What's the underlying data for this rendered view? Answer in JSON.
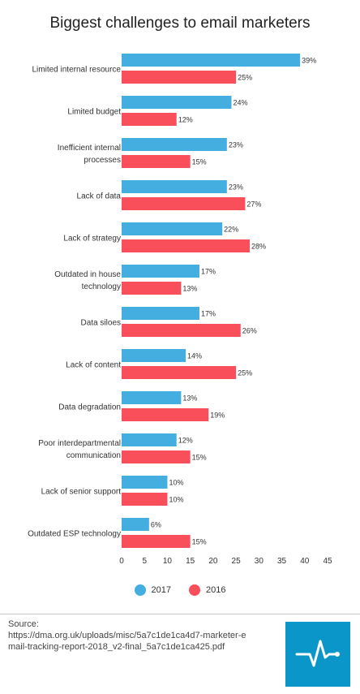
{
  "title": "Biggest challenges to email marketers",
  "colors": {
    "s2017": "#45aee0",
    "s2016": "#f94f5a",
    "logo_bg": "#0a96c8"
  },
  "chart_data": {
    "type": "bar",
    "orientation": "horizontal",
    "title": "Biggest challenges to email marketers",
    "categories": [
      "Limited internal resource",
      "Limited budget",
      "Inefficient internal processes",
      "Lack of data",
      "Lack of strategy",
      "Outdated in house technology",
      "Data siloes",
      "Lack of content",
      "Data degradation",
      "Poor interdepartmental communication",
      "Lack of senior support",
      "Outdated ESP technology"
    ],
    "category_lines": [
      [
        "Limited internal resource"
      ],
      [
        "Limited budget"
      ],
      [
        "Inefficient internal",
        "processes"
      ],
      [
        "Lack of data"
      ],
      [
        "Lack of strategy"
      ],
      [
        "Outdated in house",
        "technology"
      ],
      [
        "Data siloes"
      ],
      [
        "Lack of content"
      ],
      [
        "Data degradation"
      ],
      [
        "Poor interdepartmental",
        "communication"
      ],
      [
        "Lack of senior support"
      ],
      [
        "Outdated ESP technology"
      ]
    ],
    "series": [
      {
        "name": "2017",
        "values": [
          39,
          24,
          23,
          23,
          22,
          17,
          17,
          14,
          13,
          12,
          10,
          6
        ]
      },
      {
        "name": "2016",
        "values": [
          25,
          12,
          15,
          27,
          28,
          13,
          26,
          25,
          19,
          15,
          10,
          15
        ]
      }
    ],
    "value_suffix": "%",
    "xlim": [
      0,
      45
    ],
    "xticks": [
      0,
      5,
      10,
      15,
      20,
      25,
      30,
      35,
      40,
      45
    ],
    "grid": false,
    "legend_position": "bottom"
  },
  "legend": [
    {
      "label": "2017"
    },
    {
      "label": "2016"
    }
  ],
  "source": {
    "label": "Source:",
    "text": "https://dma.org.uk/uploads/misc/5a7c1de1ca4d7-marketer-email-tracking-report-2018_v2-final_5a7c1de1ca425.pdf"
  },
  "logo": {
    "icon": "pulse-line-icon"
  }
}
